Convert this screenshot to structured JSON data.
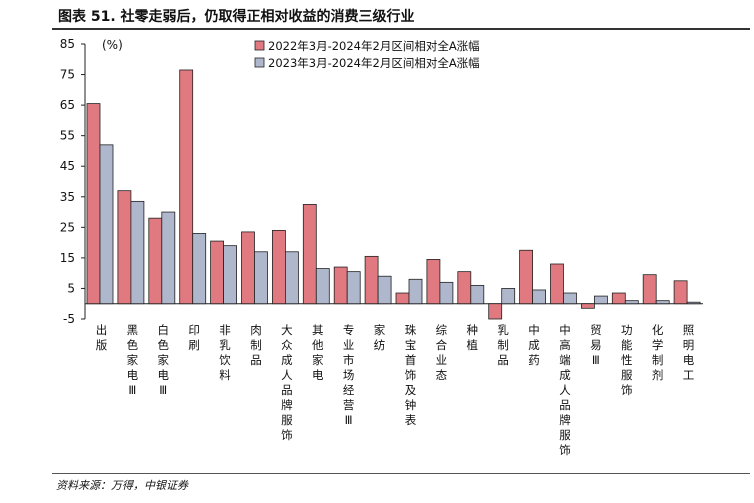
{
  "figure": {
    "title": "图表 51. 社零走弱后，仍取得正相对收益的消费三级行业",
    "source": "资料来源：万得，中银证券"
  },
  "chart_data": {
    "type": "bar",
    "unit_label": "(%)",
    "ylim": [
      -5,
      85
    ],
    "yticks": [
      85,
      75,
      65,
      55,
      45,
      35,
      25,
      15,
      5,
      -5
    ],
    "categories": [
      "出版",
      "黑色家电Ⅲ",
      "白色家电Ⅲ",
      "印刷",
      "非乳饮料",
      "肉制品",
      "大众成人品牌服饰",
      "其他家电",
      "专业市场经营Ⅲ",
      "家纺",
      "珠宝首饰及钟表",
      "综合业态",
      "种植",
      "乳制品",
      "中成药",
      "中高端成人品牌服饰",
      "贸易Ⅲ",
      "功能性服饰",
      "化学制剂",
      "照明电工"
    ],
    "series": [
      {
        "name": "2022年3月-2024年2月区间相对全A涨幅",
        "color": "#E07A80",
        "values": [
          65.5,
          37,
          28,
          76.5,
          20.5,
          23.5,
          24,
          32.5,
          12,
          15.5,
          3.5,
          14.5,
          10.5,
          -5,
          17.5,
          13,
          -1.5,
          3.5,
          9.5,
          7.5
        ]
      },
      {
        "name": "2023年3月-2024年2月区间相对全A涨幅",
        "color": "#AEB7CC",
        "values": [
          52,
          33.5,
          30,
          23,
          19,
          17,
          17,
          11.5,
          10.5,
          9,
          8,
          7,
          6,
          5,
          4.5,
          3.5,
          2.5,
          1,
          1,
          0.5
        ]
      }
    ],
    "legend_position": "top-center",
    "grid": false
  }
}
